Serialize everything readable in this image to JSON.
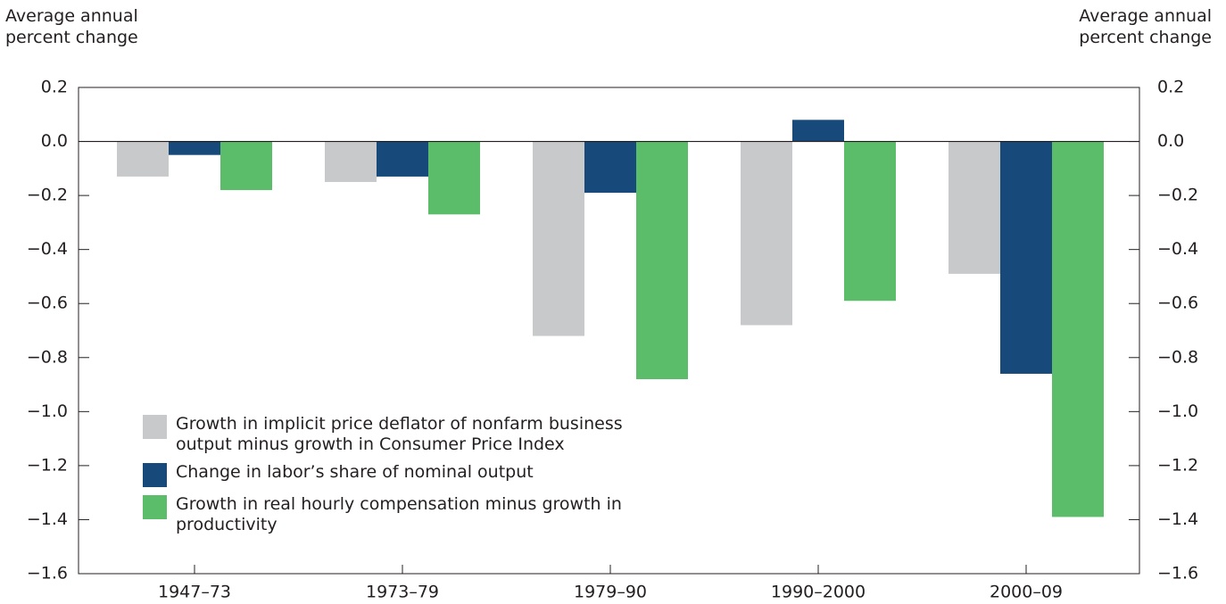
{
  "chart_data": {
    "type": "bar",
    "y_label": "Average annual percent change",
    "y2_label": "Average annual percent change",
    "categories": [
      "1947–73",
      "1973–79",
      "1979–90",
      "1990–2000",
      "2000–09"
    ],
    "series": [
      {
        "name": "Growth in implicit price deflator of nonfarm business output minus growth in Consumer Price Index",
        "color": "#c8c9cb",
        "values": [
          -0.13,
          -0.15,
          -0.72,
          -0.68,
          -0.49
        ]
      },
      {
        "name": "Change in labor’s share of nominal output",
        "color": "#17497a",
        "values": [
          -0.05,
          -0.13,
          -0.19,
          0.08,
          -0.86
        ]
      },
      {
        "name": "Growth in real hourly compensation minus growth in productivity",
        "color": "#5bbd6a",
        "values": [
          -0.18,
          -0.27,
          -0.88,
          -0.59,
          -1.39
        ]
      }
    ],
    "ylim": [
      -1.6,
      0.2
    ],
    "yticks": [
      {
        "value": -1.6,
        "label": "−1.6"
      },
      {
        "value": -1.4,
        "label": "−1.4"
      },
      {
        "value": -1.2,
        "label": "−1.2"
      },
      {
        "value": -1.0,
        "label": "−1.0"
      },
      {
        "value": -0.8,
        "label": "−0.8"
      },
      {
        "value": -0.6,
        "label": "−0.6"
      },
      {
        "value": -0.4,
        "label": "−0.4"
      },
      {
        "value": -0.2,
        "label": "−0.2"
      },
      {
        "value": 0,
        "label": "0.0"
      },
      0.2
    ],
    "y2lim": [
      -1.6,
      0.2
    ],
    "y2ticks": [
      {
        "value": -1.6,
        "label": "−1.6"
      },
      {
        "value": -1.4,
        "label": "−1.4"
      },
      {
        "value": -1.2,
        "label": "−1.2"
      },
      {
        "value": -1.0,
        "label": "−1.0"
      },
      {
        "value": -0.8,
        "label": "−0.8"
      },
      {
        "value": -0.6,
        "label": "−0.6"
      },
      {
        "value": -0.4,
        "label": "−0.4"
      },
      {
        "value": -0.2,
        "label": "−0.2"
      },
      {
        "value": 0,
        "label": "0.0"
      },
      0.2
    ],
    "legend": "lower left"
  }
}
